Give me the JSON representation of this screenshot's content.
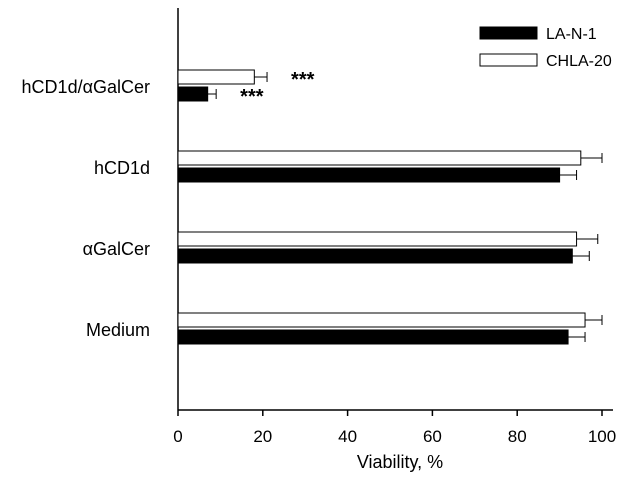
{
  "chart_data": {
    "type": "bar",
    "orientation": "horizontal",
    "categories": [
      "hCD1d/αGalCer",
      "hCD1d",
      "αGalCer",
      "Medium"
    ],
    "series": [
      {
        "name": "CHLA-20",
        "values": [
          18,
          95,
          94,
          96
        ],
        "errors": [
          3,
          5,
          5,
          4
        ],
        "color": "#ffffff",
        "stroke": "#000000"
      },
      {
        "name": "LA-N-1",
        "values": [
          7,
          90,
          93,
          92
        ],
        "errors": [
          2,
          4,
          4,
          4
        ],
        "color": "#000000",
        "stroke": "#000000"
      }
    ],
    "significance": [
      {
        "category": "hCD1d/αGalCer",
        "series": "CHLA-20",
        "label": "***"
      },
      {
        "category": "hCD1d/αGalCer",
        "series": "LA-N-1",
        "label": "***"
      }
    ],
    "xlabel": "Viability, %",
    "ylabel": "",
    "xlim": [
      0,
      100
    ],
    "xticks": [
      "0",
      "20",
      "40",
      "60",
      "80",
      "100"
    ],
    "grid": false,
    "legend": {
      "position": "top-right",
      "entries": [
        {
          "name": "LA-N-1",
          "color": "#000000"
        },
        {
          "name": "CHLA-20",
          "color": "#ffffff"
        }
      ]
    }
  }
}
